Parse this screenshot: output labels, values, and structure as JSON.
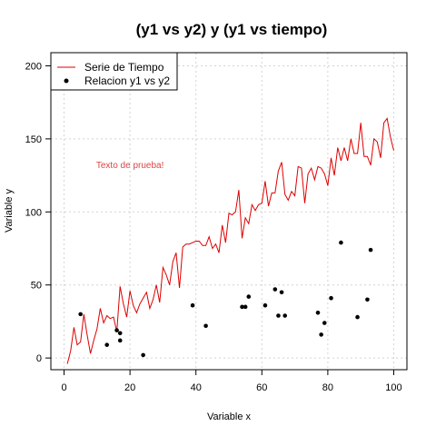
{
  "chart_data": {
    "type": "line+scatter",
    "title": "(y1 vs y2) y (y1 vs tiempo)",
    "xlabel": "Variable x",
    "ylabel": "Variable y",
    "xlim": [
      -4,
      104
    ],
    "ylim": [
      -8,
      209
    ],
    "x_ticks": [
      0,
      20,
      40,
      60,
      80,
      100
    ],
    "y_ticks": [
      0,
      50,
      100,
      150,
      200
    ],
    "grid": true,
    "legend_position": "top-left",
    "annotation": {
      "text": "Texto de prueba!",
      "x": 20,
      "y": 130,
      "color": "#dd4444"
    },
    "series": [
      {
        "name": "Serie de Tiempo",
        "kind": "line",
        "color": "#dd0000",
        "x": [
          1,
          2,
          3,
          4,
          5,
          6,
          7,
          8,
          9,
          10,
          11,
          12,
          13,
          14,
          15,
          16,
          17,
          18,
          19,
          20,
          21,
          22,
          23,
          24,
          25,
          26,
          27,
          28,
          29,
          30,
          31,
          32,
          33,
          34,
          35,
          36,
          37,
          38,
          39,
          40,
          41,
          42,
          43,
          44,
          45,
          46,
          47,
          48,
          49,
          50,
          51,
          52,
          53,
          54,
          55,
          56,
          57,
          58,
          59,
          60,
          61,
          62,
          63,
          64,
          65,
          66,
          67,
          68,
          69,
          70,
          71,
          72,
          73,
          74,
          75,
          76,
          77,
          78,
          79,
          80,
          81,
          82,
          83,
          84,
          85,
          86,
          87,
          88,
          89,
          90,
          91,
          92,
          93,
          94,
          95,
          96,
          97,
          98,
          99,
          100
        ],
        "y": [
          -4,
          5,
          21,
          9,
          11,
          30,
          16,
          3,
          12,
          20,
          34,
          24,
          29,
          27,
          28,
          18,
          49,
          37,
          28,
          46,
          36,
          31,
          37,
          41,
          45,
          34,
          40,
          50,
          38,
          62,
          57,
          50,
          66,
          72,
          48,
          76,
          78,
          78,
          79,
          80,
          80,
          77,
          77,
          83,
          75,
          78,
          72,
          91,
          79,
          99,
          98,
          100,
          115,
          82,
          96,
          92,
          105,
          101,
          105,
          106,
          121,
          104,
          113,
          113,
          128,
          134,
          112,
          108,
          114,
          111,
          131,
          130,
          106,
          126,
          130,
          122,
          131,
          130,
          126,
          118,
          137,
          125,
          144,
          135,
          144,
          135,
          150,
          140,
          140,
          161,
          138,
          138,
          132,
          150,
          148,
          137,
          161,
          164,
          151,
          142
        ]
      },
      {
        "name": "Relacion y1 vs y2",
        "kind": "points",
        "color": "#000000",
        "points": [
          [
            5,
            30
          ],
          [
            13,
            9
          ],
          [
            16,
            19
          ],
          [
            17,
            12
          ],
          [
            17,
            17
          ],
          [
            24,
            2
          ],
          [
            39,
            36
          ],
          [
            43,
            22
          ],
          [
            54,
            35
          ],
          [
            55,
            35
          ],
          [
            56,
            42
          ],
          [
            61,
            36
          ],
          [
            64,
            47
          ],
          [
            65,
            29
          ],
          [
            66,
            45
          ],
          [
            67,
            29
          ],
          [
            77,
            31
          ],
          [
            78,
            16
          ],
          [
            79,
            24
          ],
          [
            81,
            41
          ],
          [
            84,
            79
          ],
          [
            89,
            28
          ],
          [
            92,
            40
          ],
          [
            93,
            74
          ]
        ]
      }
    ]
  }
}
